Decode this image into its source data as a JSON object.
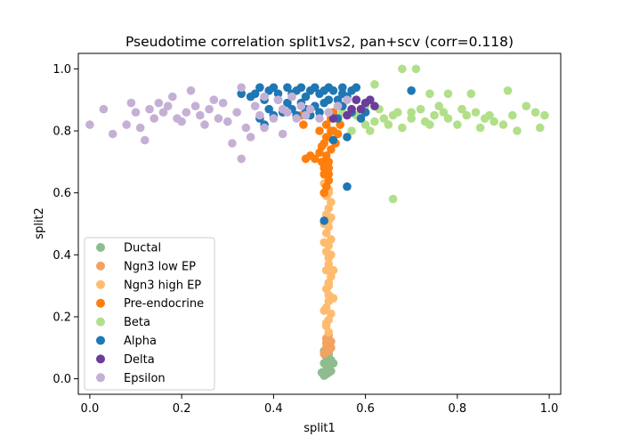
{
  "chart_data": {
    "type": "scatter",
    "title": "Pseudotime correlation split1vs2, pan+scv (corr=0.118)",
    "xlabel": "split1",
    "ylabel": "split2",
    "xlim": [
      -0.025,
      1.025
    ],
    "ylim": [
      -0.05,
      1.05
    ],
    "xticks": [
      0.0,
      0.2,
      0.4,
      0.6,
      0.8,
      1.0
    ],
    "yticks": [
      0.0,
      0.2,
      0.4,
      0.6,
      0.8,
      1.0
    ],
    "xtick_labels": [
      "0.0",
      "0.2",
      "0.4",
      "0.6",
      "0.8",
      "1.0"
    ],
    "ytick_labels": [
      "0.0",
      "0.2",
      "0.4",
      "0.6",
      "0.8",
      "1.0"
    ],
    "grid": false,
    "legend_position": "lower-left",
    "series": [
      {
        "name": "Ductal",
        "color": "#8fbc8f",
        "points": [
          [
            0.51,
            0.01
          ],
          [
            0.52,
            0.02
          ],
          [
            0.515,
            0.03
          ],
          [
            0.52,
            0.04
          ],
          [
            0.51,
            0.05
          ],
          [
            0.525,
            0.06
          ],
          [
            0.515,
            0.07
          ],
          [
            0.52,
            0.08
          ],
          [
            0.51,
            0.09
          ],
          [
            0.52,
            0.03
          ],
          [
            0.53,
            0.05
          ],
          [
            0.505,
            0.02
          ],
          [
            0.515,
            0.015
          ],
          [
            0.525,
            0.025
          ],
          [
            0.52,
            0.065
          ]
        ]
      },
      {
        "name": "Ngn3 low EP",
        "color": "#f4a261",
        "points": [
          [
            0.52,
            0.09
          ],
          [
            0.515,
            0.1
          ],
          [
            0.52,
            0.11
          ],
          [
            0.525,
            0.12
          ],
          [
            0.515,
            0.13
          ],
          [
            0.52,
            0.14
          ],
          [
            0.51,
            0.08
          ],
          [
            0.525,
            0.1
          ],
          [
            0.52,
            0.12
          ],
          [
            0.515,
            0.115
          ]
        ]
      },
      {
        "name": "Ngn3 high EP",
        "color": "#ffbb6e",
        "points": [
          [
            0.52,
            0.15
          ],
          [
            0.515,
            0.17
          ],
          [
            0.52,
            0.19
          ],
          [
            0.525,
            0.21
          ],
          [
            0.515,
            0.23
          ],
          [
            0.52,
            0.25
          ],
          [
            0.52,
            0.27
          ],
          [
            0.515,
            0.29
          ],
          [
            0.52,
            0.31
          ],
          [
            0.525,
            0.33
          ],
          [
            0.515,
            0.35
          ],
          [
            0.52,
            0.37
          ],
          [
            0.52,
            0.39
          ],
          [
            0.515,
            0.41
          ],
          [
            0.52,
            0.43
          ],
          [
            0.525,
            0.45
          ],
          [
            0.515,
            0.47
          ],
          [
            0.52,
            0.49
          ],
          [
            0.52,
            0.51
          ],
          [
            0.515,
            0.53
          ],
          [
            0.52,
            0.55
          ],
          [
            0.525,
            0.57
          ],
          [
            0.515,
            0.59
          ],
          [
            0.52,
            0.61
          ],
          [
            0.51,
            0.63
          ],
          [
            0.52,
            0.3
          ],
          [
            0.525,
            0.4
          ],
          [
            0.51,
            0.5
          ],
          [
            0.53,
            0.35
          ],
          [
            0.51,
            0.22
          ],
          [
            0.53,
            0.26
          ],
          [
            0.51,
            0.44
          ],
          [
            0.525,
            0.52
          ],
          [
            0.515,
            0.18
          ],
          [
            0.52,
            0.6
          ]
        ]
      },
      {
        "name": "Pre-endocrine",
        "color": "#ff7f0e",
        "points": [
          [
            0.51,
            0.6
          ],
          [
            0.515,
            0.62
          ],
          [
            0.52,
            0.64
          ],
          [
            0.51,
            0.66
          ],
          [
            0.52,
            0.68
          ],
          [
            0.505,
            0.7
          ],
          [
            0.515,
            0.72
          ],
          [
            0.525,
            0.74
          ],
          [
            0.51,
            0.76
          ],
          [
            0.52,
            0.78
          ],
          [
            0.53,
            0.8
          ],
          [
            0.515,
            0.82
          ],
          [
            0.525,
            0.84
          ],
          [
            0.49,
            0.71
          ],
          [
            0.5,
            0.73
          ],
          [
            0.535,
            0.76
          ],
          [
            0.54,
            0.79
          ],
          [
            0.545,
            0.82
          ],
          [
            0.5,
            0.8
          ],
          [
            0.505,
            0.75
          ],
          [
            0.48,
            0.72
          ],
          [
            0.47,
            0.71
          ],
          [
            0.465,
            0.82
          ],
          [
            0.46,
            0.85
          ],
          [
            0.53,
            0.86
          ],
          [
            0.52,
            0.7
          ],
          [
            0.51,
            0.68
          ],
          [
            0.52,
            0.66
          ],
          [
            0.525,
            0.8
          ],
          [
            0.515,
            0.78
          ]
        ]
      },
      {
        "name": "Beta",
        "color": "#b2df8a",
        "points": [
          [
            0.68,
            1.0
          ],
          [
            0.71,
            1.0
          ],
          [
            0.62,
            0.95
          ],
          [
            0.74,
            0.92
          ],
          [
            0.78,
            0.92
          ],
          [
            0.83,
            0.92
          ],
          [
            0.91,
            0.93
          ],
          [
            0.95,
            0.88
          ],
          [
            0.97,
            0.86
          ],
          [
            0.99,
            0.85
          ],
          [
            0.98,
            0.81
          ],
          [
            0.93,
            0.8
          ],
          [
            0.9,
            0.82
          ],
          [
            0.86,
            0.84
          ],
          [
            0.82,
            0.85
          ],
          [
            0.78,
            0.84
          ],
          [
            0.74,
            0.82
          ],
          [
            0.7,
            0.86
          ],
          [
            0.66,
            0.85
          ],
          [
            0.62,
            0.83
          ],
          [
            0.6,
            0.82
          ],
          [
            0.57,
            0.8
          ],
          [
            0.58,
            0.85
          ],
          [
            0.6,
            0.88
          ],
          [
            0.64,
            0.84
          ],
          [
            0.68,
            0.81
          ],
          [
            0.72,
            0.87
          ],
          [
            0.76,
            0.88
          ],
          [
            0.8,
            0.82
          ],
          [
            0.84,
            0.86
          ],
          [
            0.88,
            0.83
          ],
          [
            0.92,
            0.85
          ],
          [
            0.66,
            0.58
          ],
          [
            0.55,
            0.86
          ],
          [
            0.53,
            0.84
          ],
          [
            0.65,
            0.82
          ],
          [
            0.7,
            0.84
          ],
          [
            0.75,
            0.85
          ],
          [
            0.85,
            0.81
          ],
          [
            0.63,
            0.87
          ],
          [
            0.59,
            0.87
          ],
          [
            0.67,
            0.86
          ],
          [
            0.73,
            0.83
          ],
          [
            0.77,
            0.86
          ],
          [
            0.81,
            0.87
          ],
          [
            0.87,
            0.85
          ],
          [
            0.61,
            0.8
          ]
        ]
      },
      {
        "name": "Alpha",
        "color": "#1f77b4",
        "points": [
          [
            0.37,
            0.94
          ],
          [
            0.4,
            0.94
          ],
          [
            0.43,
            0.94
          ],
          [
            0.46,
            0.94
          ],
          [
            0.49,
            0.94
          ],
          [
            0.52,
            0.94
          ],
          [
            0.55,
            0.94
          ],
          [
            0.58,
            0.94
          ],
          [
            0.36,
            0.92
          ],
          [
            0.38,
            0.9
          ],
          [
            0.39,
            0.87
          ],
          [
            0.37,
            0.84
          ],
          [
            0.38,
            0.82
          ],
          [
            0.41,
            0.9
          ],
          [
            0.44,
            0.92
          ],
          [
            0.47,
            0.91
          ],
          [
            0.5,
            0.92
          ],
          [
            0.53,
            0.93
          ],
          [
            0.56,
            0.91
          ],
          [
            0.58,
            0.9
          ],
          [
            0.55,
            0.88
          ],
          [
            0.57,
            0.86
          ],
          [
            0.54,
            0.84
          ],
          [
            0.59,
            0.84
          ],
          [
            0.6,
            0.86
          ],
          [
            0.56,
            0.78
          ],
          [
            0.53,
            0.77
          ],
          [
            0.56,
            0.62
          ],
          [
            0.51,
            0.51
          ],
          [
            0.7,
            0.93
          ],
          [
            0.44,
            0.87
          ],
          [
            0.42,
            0.86
          ],
          [
            0.45,
            0.85
          ],
          [
            0.49,
            0.88
          ],
          [
            0.52,
            0.9
          ],
          [
            0.35,
            0.91
          ],
          [
            0.48,
            0.85
          ],
          [
            0.5,
            0.86
          ],
          [
            0.46,
            0.89
          ],
          [
            0.33,
            0.92
          ],
          [
            0.4,
            0.85
          ],
          [
            0.43,
            0.89
          ],
          [
            0.47,
            0.87
          ],
          [
            0.51,
            0.89
          ],
          [
            0.54,
            0.9
          ],
          [
            0.57,
            0.93
          ],
          [
            0.39,
            0.93
          ],
          [
            0.41,
            0.92
          ],
          [
            0.45,
            0.93
          ],
          [
            0.48,
            0.93
          ],
          [
            0.51,
            0.93
          ],
          [
            0.55,
            0.92
          ]
        ]
      },
      {
        "name": "Delta",
        "color": "#6a3d9a",
        "points": [
          [
            0.58,
            0.9
          ],
          [
            0.6,
            0.89
          ],
          [
            0.62,
            0.88
          ],
          [
            0.57,
            0.87
          ],
          [
            0.59,
            0.87
          ],
          [
            0.53,
            0.84
          ],
          [
            0.56,
            0.85
          ],
          [
            0.61,
            0.9
          ]
        ]
      },
      {
        "name": "Epsilon",
        "color": "#c5b0d5",
        "points": [
          [
            0.0,
            0.82
          ],
          [
            0.03,
            0.87
          ],
          [
            0.05,
            0.79
          ],
          [
            0.09,
            0.89
          ],
          [
            0.1,
            0.86
          ],
          [
            0.11,
            0.81
          ],
          [
            0.12,
            0.77
          ],
          [
            0.13,
            0.87
          ],
          [
            0.15,
            0.89
          ],
          [
            0.16,
            0.86
          ],
          [
            0.17,
            0.88
          ],
          [
            0.18,
            0.91
          ],
          [
            0.19,
            0.84
          ],
          [
            0.21,
            0.86
          ],
          [
            0.22,
            0.93
          ],
          [
            0.23,
            0.88
          ],
          [
            0.24,
            0.85
          ],
          [
            0.25,
            0.82
          ],
          [
            0.26,
            0.87
          ],
          [
            0.28,
            0.84
          ],
          [
            0.29,
            0.89
          ],
          [
            0.3,
            0.83
          ],
          [
            0.31,
            0.76
          ],
          [
            0.32,
            0.86
          ],
          [
            0.33,
            0.94
          ],
          [
            0.34,
            0.81
          ],
          [
            0.33,
            0.71
          ],
          [
            0.35,
            0.78
          ],
          [
            0.36,
            0.88
          ],
          [
            0.37,
            0.85
          ],
          [
            0.38,
            0.81
          ],
          [
            0.4,
            0.84
          ],
          [
            0.42,
            0.87
          ],
          [
            0.42,
            0.79
          ],
          [
            0.43,
            0.86
          ],
          [
            0.45,
            0.84
          ],
          [
            0.46,
            0.88
          ],
          [
            0.47,
            0.85
          ],
          [
            0.48,
            0.87
          ],
          [
            0.5,
            0.84
          ],
          [
            0.52,
            0.86
          ],
          [
            0.54,
            0.88
          ],
          [
            0.56,
            0.9
          ],
          [
            0.41,
            0.9
          ],
          [
            0.44,
            0.91
          ],
          [
            0.38,
            0.91
          ],
          [
            0.2,
            0.83
          ],
          [
            0.27,
            0.9
          ],
          [
            0.14,
            0.84
          ],
          [
            0.08,
            0.82
          ]
        ]
      }
    ]
  }
}
